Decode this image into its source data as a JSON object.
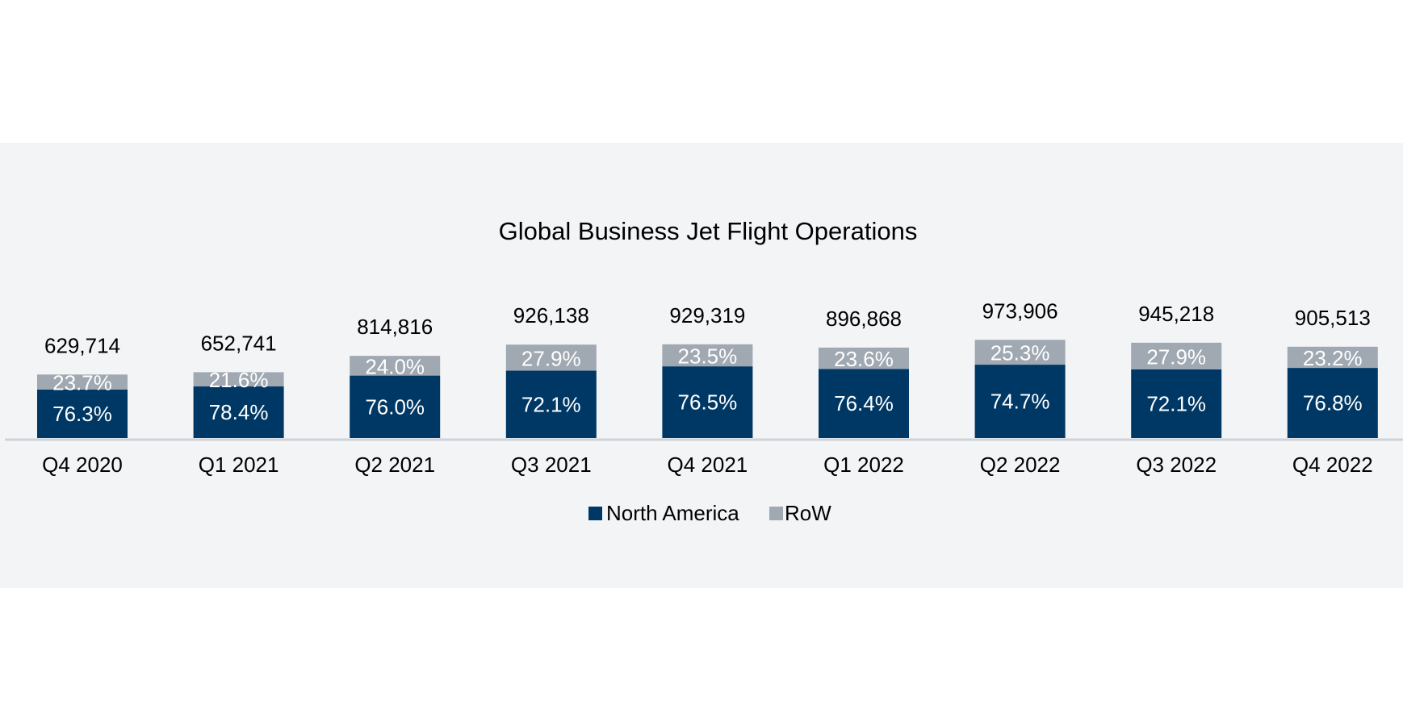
{
  "colors": {
    "panel_background": "#f3f4f6",
    "north_america": "#003865",
    "row": "#a0a8b2",
    "axis_line": "#cfd3d8"
  },
  "chart_data": {
    "type": "bar",
    "stacked": true,
    "title": "Global Business Jet Flight Operations",
    "categories": [
      "Q4 2020",
      "Q1 2021",
      "Q2 2021",
      "Q3 2021",
      "Q4 2021",
      "Q1 2022",
      "Q2 2022",
      "Q3 2022",
      "Q4 2022"
    ],
    "totals": [
      629714,
      652741,
      814816,
      926138,
      929319,
      896868,
      973906,
      945218,
      905513
    ],
    "total_labels": [
      "629,714",
      "652,741",
      "814,816",
      "926,138",
      "929,319",
      "896,868",
      "973,906",
      "945,218",
      "905,513"
    ],
    "series": [
      {
        "name": "North America",
        "color": "#003865",
        "share_pct": [
          76.3,
          78.4,
          76.0,
          72.1,
          76.5,
          76.4,
          74.7,
          72.1,
          76.8
        ],
        "labels": [
          "76.3%",
          "78.4%",
          "76.0%",
          "72.1%",
          "76.5%",
          "76.4%",
          "74.7%",
          "72.1%",
          "76.8%"
        ]
      },
      {
        "name": "RoW",
        "color": "#a0a8b2",
        "share_pct": [
          23.7,
          21.6,
          24.0,
          27.9,
          23.5,
          23.6,
          25.3,
          27.9,
          23.2
        ],
        "labels": [
          "23.7%",
          "21.6%",
          "24.0%",
          "27.9%",
          "23.5%",
          "23.6%",
          "25.3%",
          "27.9%",
          "23.2%"
        ]
      }
    ],
    "xlabel": "",
    "ylabel": "",
    "ylim": [
      0,
      1000000
    ],
    "grid": false,
    "legend": "bottom"
  }
}
